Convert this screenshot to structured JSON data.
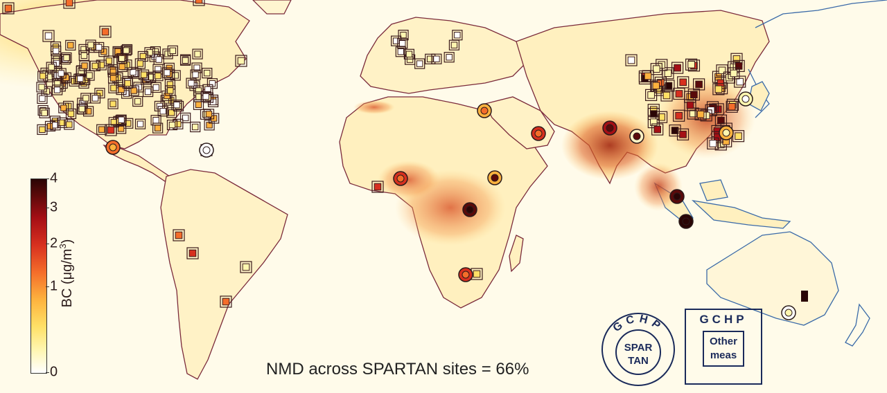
{
  "colorbar": {
    "label_prefix": "BC (μg/m",
    "label_sup": "3",
    "label_suffix": ")",
    "ticks": [
      "4",
      "3",
      "2",
      "1",
      "0"
    ],
    "range": [
      0,
      4
    ],
    "colors": [
      "#ffffff",
      "#fff6b0",
      "#ffe066",
      "#fdb23e",
      "#f46d2a",
      "#d7301f",
      "#a50f15",
      "#5a0a0a",
      "#2a0505"
    ]
  },
  "statistic": {
    "text": "NMD across SPARTAN sites = 66%"
  },
  "legend": {
    "circle": {
      "outer_label": "GCHP",
      "inner_line1": "SPAR",
      "inner_line2": "TAN"
    },
    "square": {
      "outer_label": "GCHP",
      "inner_line1": "Other",
      "inner_line2": "meas"
    }
  },
  "theme": {
    "ocean": "#fffbea",
    "land_low": "#fff2c4",
    "border_west": "#7a2a3a",
    "border_east": "#3a6aa8",
    "legend_navy": "#1a2a5a"
  }
}
